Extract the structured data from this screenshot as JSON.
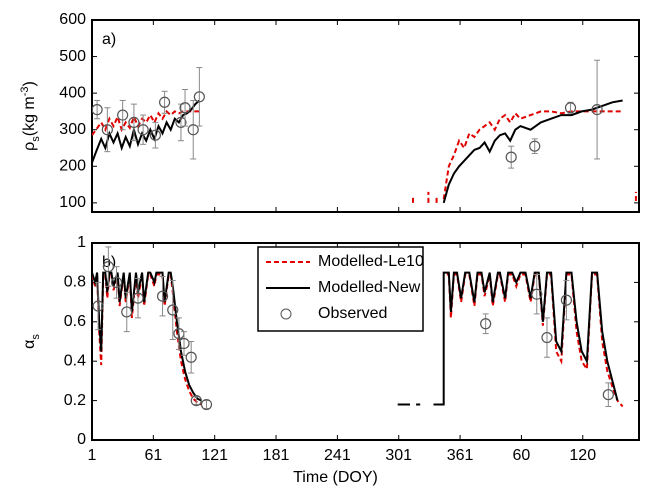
{
  "chart_data": [
    {
      "type": "line",
      "panel_label": "a)",
      "ylabel": [
        "ρ",
        "s",
        "(kg m",
        "-3",
        ")"
      ],
      "xlim": [
        1,
        536
      ],
      "xticks": [
        1,
        61,
        121,
        181,
        241,
        301,
        361,
        421,
        481
      ],
      "ylim": [
        75,
        600
      ],
      "yticks": [
        100,
        200,
        300,
        400,
        500,
        600
      ],
      "series": [
        {
          "color": "#e00000",
          "style": "dashed",
          "x": [
            1,
            5,
            10,
            14,
            18,
            22,
            26,
            30,
            34,
            38,
            42,
            46,
            50,
            54,
            58,
            62,
            66,
            70,
            74,
            78,
            82,
            86,
            90,
            94,
            98,
            102,
            106,
            106,
            315,
            315,
            315,
            330,
            330,
            330,
            338,
            338,
            338,
            345,
            350,
            355,
            360,
            365,
            370,
            375,
            380,
            385,
            390,
            395,
            400,
            405,
            410,
            415,
            420,
            430,
            440,
            450,
            460,
            470,
            480,
            490,
            500,
            510,
            520,
            520,
            533,
            533
          ],
          "values": [
            285,
            300,
            320,
            300,
            330,
            310,
            335,
            300,
            320,
            305,
            335,
            310,
            330,
            320,
            340,
            320,
            345,
            330,
            350,
            340,
            350,
            345,
            350,
            350,
            350,
            350,
            350,
            null,
            100,
            120,
            null,
            100,
            130,
            null,
            100,
            120,
            null,
            110,
            200,
            230,
            270,
            250,
            290,
            280,
            300,
            310,
            320,
            300,
            330,
            340,
            320,
            345,
            330,
            340,
            350,
            350,
            345,
            350,
            350,
            350,
            350,
            350,
            350,
            null,
            105,
            130
          ]
        },
        {
          "color": "#000000",
          "style": "solid",
          "x": [
            1,
            5,
            10,
            14,
            18,
            22,
            26,
            30,
            34,
            38,
            42,
            46,
            50,
            54,
            58,
            62,
            66,
            70,
            74,
            78,
            82,
            86,
            90,
            94,
            98,
            102,
            106,
            106,
            345,
            350,
            355,
            360,
            365,
            370,
            375,
            380,
            385,
            390,
            395,
            400,
            405,
            410,
            415,
            420,
            430,
            440,
            450,
            460,
            470,
            480,
            490,
            500,
            510,
            520
          ],
          "values": [
            210,
            240,
            275,
            250,
            290,
            265,
            290,
            250,
            280,
            255,
            300,
            260,
            290,
            270,
            300,
            275,
            310,
            290,
            320,
            300,
            330,
            320,
            340,
            345,
            355,
            370,
            380,
            null,
            100,
            150,
            180,
            200,
            215,
            230,
            245,
            250,
            265,
            240,
            270,
            285,
            290,
            270,
            300,
            310,
            300,
            320,
            330,
            340,
            340,
            350,
            355,
            365,
            375,
            380
          ]
        },
        {
          "color": "#555555",
          "style": "marker",
          "x": [
            6,
            16,
            31,
            42,
            51,
            63,
            72,
            88,
            92,
            100,
            106,
            411,
            434,
            469,
            495
          ],
          "values": [
            355,
            300,
            340,
            320,
            300,
            285,
            375,
            320,
            360,
            300,
            390,
            225,
            255,
            360,
            355
          ],
          "errors": [
            25,
            60,
            40,
            50,
            40,
            35,
            30,
            50,
            50,
            80,
            80,
            30,
            20,
            15,
            135
          ]
        }
      ]
    },
    {
      "type": "line",
      "panel_label": "b)",
      "ylabel": [
        "α",
        "s"
      ],
      "xlabel": "Time (DOY)",
      "xlim": [
        1,
        536
      ],
      "xticks": [
        1,
        61,
        121,
        181,
        241,
        301,
        361,
        {
          "value": 421,
          "label": "60"
        },
        {
          "value": 481,
          "label": "120"
        }
      ],
      "ylim": [
        0,
        1
      ],
      "yticks": [
        0,
        0.2,
        0.4,
        0.6,
        0.8,
        1
      ],
      "legend": "upper center",
      "series": [
        {
          "name": "Modelled-Le10",
          "color": "#e00000",
          "style": "dashed",
          "x": [
            1,
            4,
            6,
            8,
            10,
            12,
            14,
            16,
            18,
            20,
            22,
            26,
            28,
            32,
            34,
            38,
            40,
            44,
            46,
            50,
            52,
            56,
            58,
            62,
            64,
            70,
            72,
            76,
            78,
            80,
            84,
            88,
            92,
            96,
            100,
            104,
            108,
            345,
            348,
            350,
            352,
            355,
            358,
            362,
            366,
            370,
            375,
            378,
            382,
            385,
            390,
            393,
            398,
            400,
            405,
            408,
            412,
            416,
            420,
            425,
            430,
            434,
            438,
            442,
            446,
            450,
            455,
            460,
            465,
            470,
            475,
            480,
            485,
            490,
            495,
            500,
            505,
            510,
            515,
            520
          ],
          "values": [
            0.84,
            0.78,
            0.84,
            0.55,
            0.38,
            0.84,
            0.84,
            0.72,
            0.84,
            0.84,
            0.76,
            0.84,
            0.68,
            0.84,
            0.7,
            0.84,
            0.62,
            0.84,
            0.72,
            0.84,
            0.68,
            0.84,
            0.84,
            0.78,
            0.84,
            0.84,
            0.68,
            0.84,
            0.84,
            0.75,
            0.55,
            0.4,
            0.31,
            0.25,
            0.21,
            0.19,
            0.18,
            null,
            0.84,
            0.84,
            0.62,
            0.84,
            0.84,
            0.7,
            0.84,
            0.84,
            0.68,
            0.84,
            0.84,
            0.73,
            0.84,
            0.68,
            0.84,
            0.84,
            0.7,
            0.84,
            0.84,
            0.78,
            0.84,
            0.84,
            0.7,
            0.84,
            0.84,
            0.58,
            0.84,
            0.84,
            0.45,
            0.4,
            0.84,
            0.84,
            0.55,
            0.4,
            0.36,
            0.84,
            0.84,
            0.5,
            0.35,
            0.27,
            0.2,
            0.17
          ]
        },
        {
          "name": "Modelled-New",
          "color": "#000000",
          "style": "solid",
          "x": [
            1,
            4,
            6,
            8,
            10,
            12,
            14,
            16,
            18,
            20,
            22,
            26,
            28,
            32,
            34,
            38,
            40,
            44,
            46,
            50,
            52,
            56,
            58,
            62,
            64,
            70,
            72,
            76,
            78,
            80,
            84,
            88,
            92,
            96,
            100,
            104,
            108,
            108,
            300,
            312,
            312,
            318,
            322,
            330,
            335,
            345,
            345,
            350,
            352,
            355,
            358,
            362,
            366,
            370,
            375,
            378,
            382,
            385,
            390,
            393,
            398,
            400,
            405,
            408,
            412,
            416,
            420,
            425,
            430,
            434,
            438,
            442,
            446,
            450,
            455,
            460,
            465,
            470,
            475,
            480,
            485,
            490,
            495,
            500,
            505,
            510,
            515
          ],
          "values": [
            0.85,
            0.8,
            0.85,
            0.6,
            0.45,
            0.85,
            0.85,
            0.75,
            0.85,
            0.85,
            0.78,
            0.85,
            0.7,
            0.85,
            0.72,
            0.85,
            0.65,
            0.85,
            0.75,
            0.85,
            0.7,
            0.85,
            0.85,
            0.8,
            0.85,
            0.85,
            0.7,
            0.85,
            0.85,
            0.78,
            0.6,
            0.45,
            0.35,
            0.28,
            0.24,
            0.21,
            0.2,
            null,
            0.18,
            0.18,
            null,
            0.18,
            0.18,
            null,
            0.18,
            0.18,
            0.85,
            0.85,
            0.65,
            0.85,
            0.85,
            0.72,
            0.85,
            0.85,
            0.7,
            0.85,
            0.85,
            0.75,
            0.85,
            0.7,
            0.85,
            0.85,
            0.72,
            0.85,
            0.85,
            0.8,
            0.85,
            0.85,
            0.72,
            0.85,
            0.85,
            0.6,
            0.85,
            0.85,
            0.5,
            0.45,
            0.85,
            0.85,
            0.6,
            0.45,
            0.4,
            0.85,
            0.85,
            0.55,
            0.4,
            0.3,
            0.2
          ]
        },
        {
          "name": "Observed",
          "color": "#555555",
          "style": "marker",
          "x": [
            7,
            17,
            25,
            35,
            46,
            70,
            80,
            86,
            91,
            98,
            103,
            113,
            386,
            436,
            446,
            465,
            506
          ],
          "values": [
            0.68,
            0.88,
            0.8,
            0.65,
            0.72,
            0.73,
            0.66,
            0.54,
            0.49,
            0.42,
            0.2,
            0.18,
            0.59,
            0.74,
            0.52,
            0.71,
            0.23
          ],
          "errors": [
            0.12,
            0.1,
            0.08,
            0.1,
            0.1,
            0.1,
            0.15,
            0.08,
            0.06,
            0.08,
            0.02,
            0.02,
            0.05,
            0.1,
            0.1,
            0.1,
            0.06
          ]
        }
      ]
    }
  ]
}
